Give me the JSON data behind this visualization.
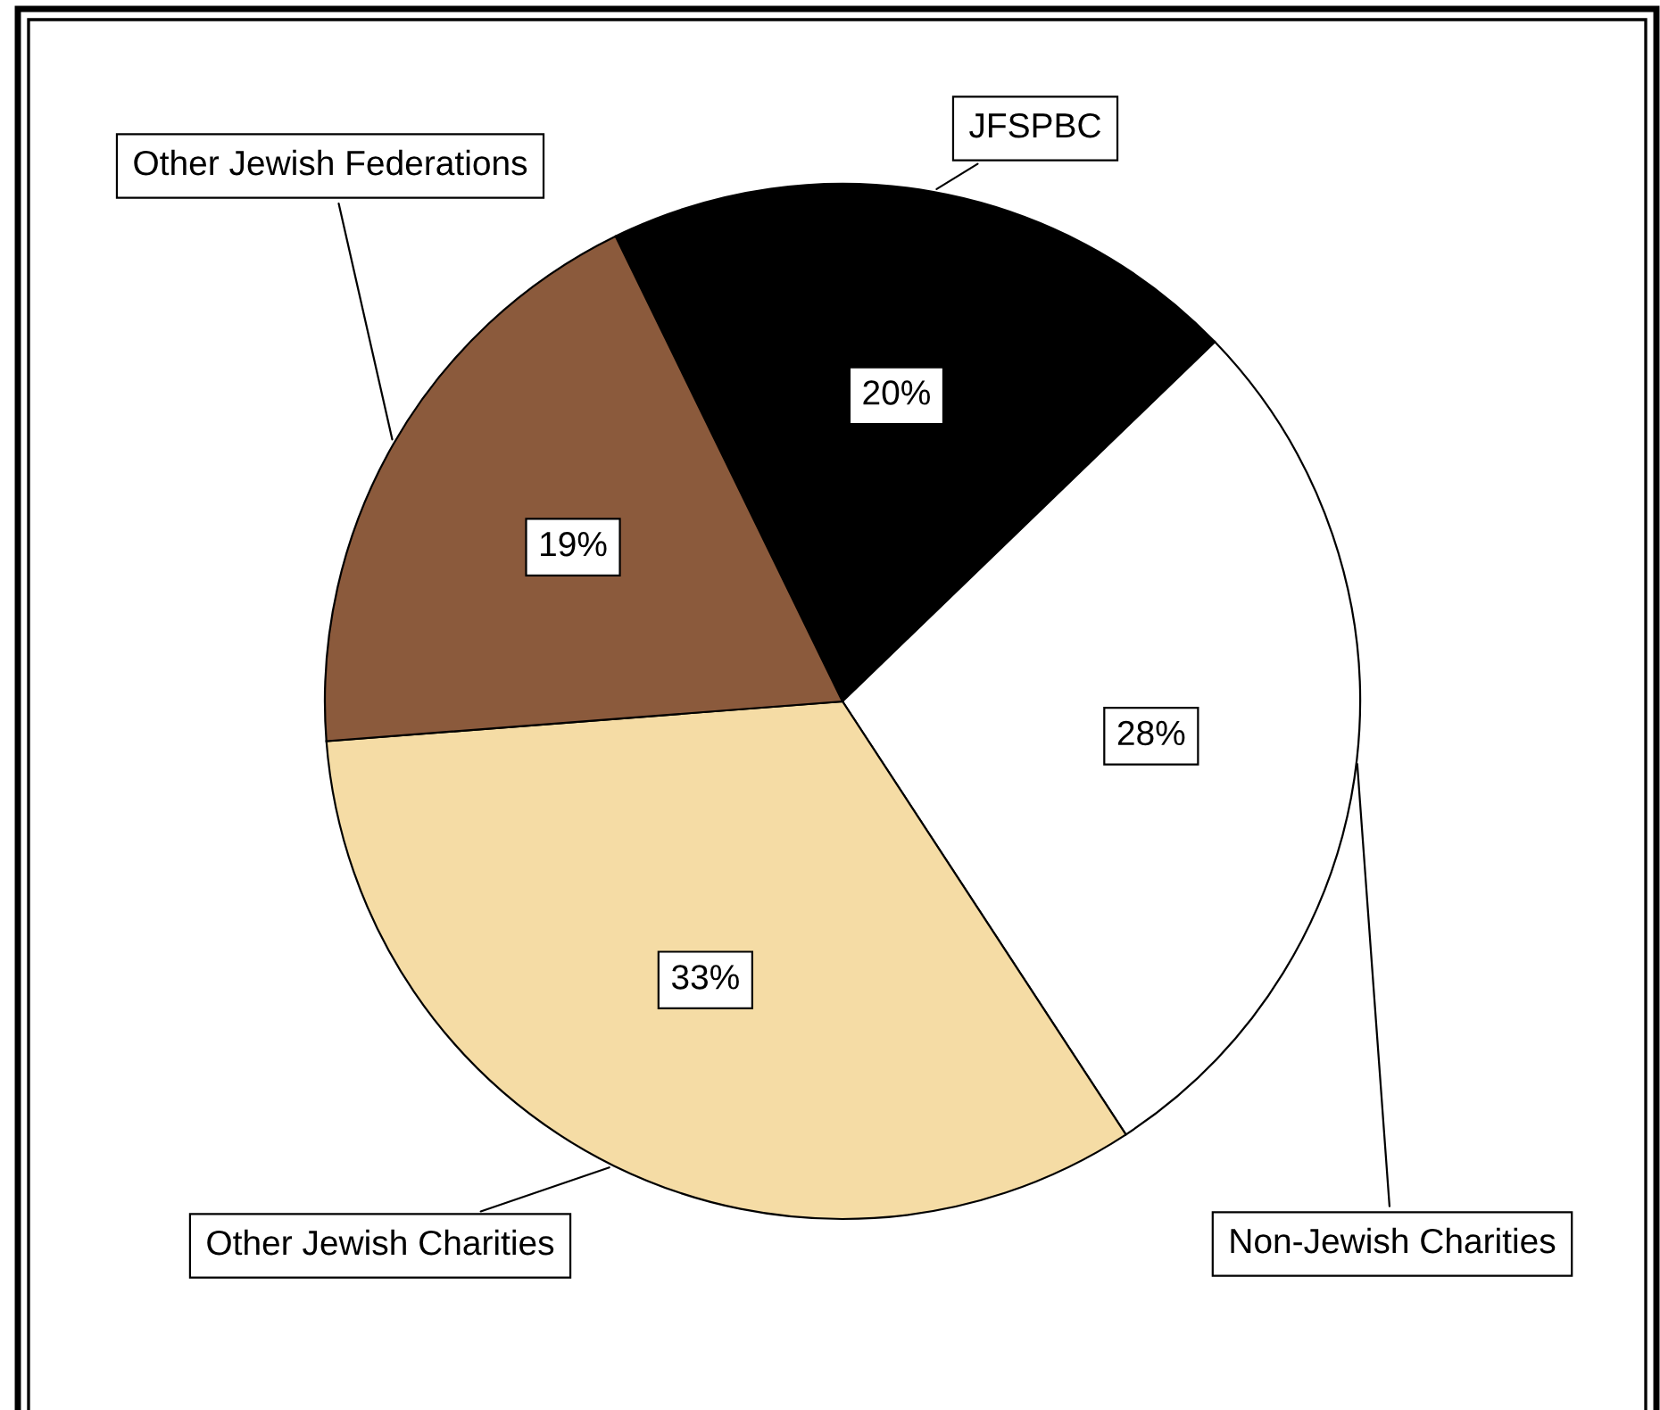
{
  "chart_data": {
    "type": "pie",
    "categories": [
      "JFSPBC",
      "Non-Jewish Charities",
      "Other Jewish Charities",
      "Other Jewish Federations"
    ],
    "values": [
      20,
      28,
      33,
      19
    ],
    "colors": [
      "#000000",
      "#ffffff",
      "#f5dca5",
      "#8b5a3c"
    ],
    "value_labels": [
      "20%",
      "28%",
      "33%",
      "19%"
    ],
    "legend": false
  }
}
